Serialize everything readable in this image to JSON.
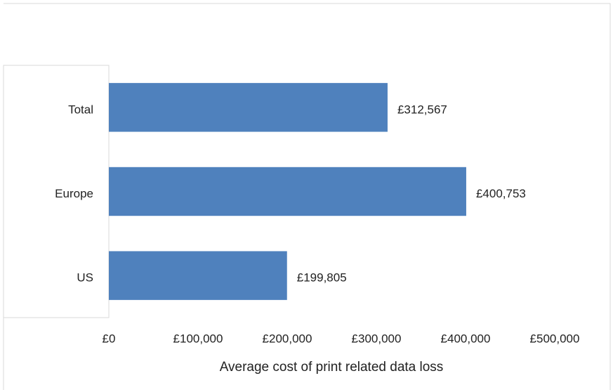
{
  "chart_data": {
    "type": "barh",
    "categories": [
      "Total",
      "Europe",
      "US"
    ],
    "values": [
      312567,
      400753,
      199805
    ],
    "value_labels": [
      "£312,567",
      "£400,753",
      "£199,805"
    ],
    "color": "#4f81bd",
    "xlabel": "Average cost of print related data loss",
    "xlim": [
      0,
      500000
    ],
    "xticks": [
      {
        "value": 0,
        "label": "£0"
      },
      {
        "value": 100000,
        "label": "£100,000"
      },
      {
        "value": 200000,
        "label": "£200,000"
      },
      {
        "value": 300000,
        "label": "£300,000"
      },
      {
        "value": 400000,
        "label": "£400,000"
      },
      {
        "value": 500000,
        "label": "£500,000"
      }
    ],
    "grid": false
  }
}
